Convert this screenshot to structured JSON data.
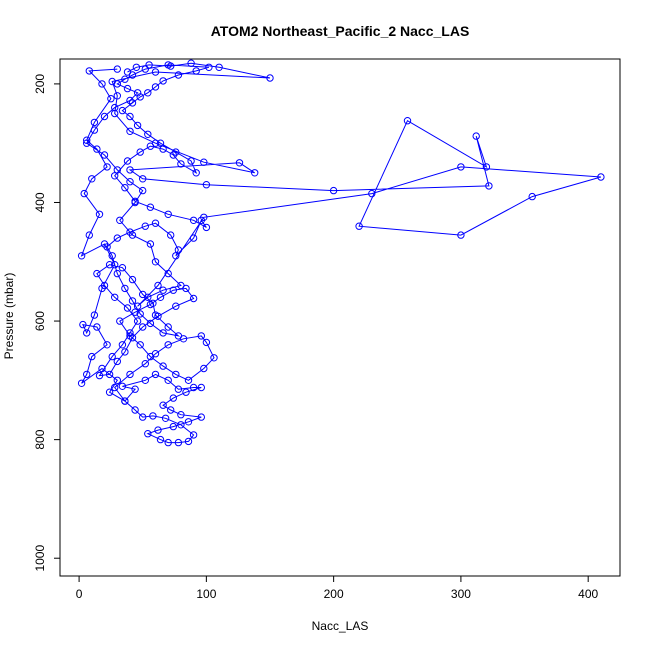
{
  "chart_data": {
    "type": "scatter",
    "title": "ATOM2 Northeast_Pacific_2 Nacc_LAS",
    "xlabel": "Nacc_LAS",
    "ylabel": "Pressure (mbar)",
    "xlim": [
      -15,
      425
    ],
    "ylim": [
      1030,
      158
    ],
    "y_reversed": true,
    "x_ticks": [
      0,
      100,
      200,
      300,
      400
    ],
    "y_ticks": [
      200,
      400,
      600,
      800,
      1000
    ],
    "grid": false,
    "legend": "none",
    "colors": {
      "series": "#0000ff",
      "axis": "#000000",
      "background": "#ffffff"
    },
    "series": [
      {
        "style": "line+points",
        "points": [
          [
            30,
            175
          ],
          [
            8,
            178
          ],
          [
            18,
            200
          ],
          [
            25,
            225
          ],
          [
            12,
            265
          ],
          [
            6,
            295
          ],
          [
            14,
            310
          ],
          [
            22,
            340
          ],
          [
            10,
            360
          ],
          [
            4,
            385
          ],
          [
            16,
            420
          ],
          [
            8,
            455
          ],
          [
            2,
            490
          ],
          [
            20,
            470
          ],
          [
            28,
            505
          ],
          [
            18,
            545
          ],
          [
            12,
            590
          ],
          [
            6,
            620
          ],
          [
            3,
            606
          ],
          [
            14,
            610
          ],
          [
            22,
            640
          ],
          [
            10,
            660
          ],
          [
            6,
            690
          ],
          [
            2,
            705
          ],
          [
            18,
            680
          ],
          [
            30,
            700
          ],
          [
            24,
            720
          ],
          [
            36,
            735
          ],
          [
            44,
            715
          ],
          [
            34,
            710
          ],
          [
            52,
            700
          ],
          [
            60,
            690
          ],
          [
            70,
            700
          ],
          [
            78,
            715
          ],
          [
            90,
            712
          ],
          [
            96,
            712
          ],
          [
            84,
            720
          ],
          [
            74,
            730
          ],
          [
            66,
            742
          ],
          [
            72,
            750
          ],
          [
            80,
            758
          ],
          [
            96,
            762
          ],
          [
            86,
            770
          ],
          [
            74,
            778
          ],
          [
            62,
            784
          ],
          [
            54,
            790
          ],
          [
            64,
            800
          ],
          [
            70,
            805
          ],
          [
            78,
            805
          ],
          [
            86,
            803
          ],
          [
            90,
            792
          ],
          [
            80,
            775
          ],
          [
            68,
            764
          ],
          [
            58,
            760
          ],
          [
            50,
            762
          ],
          [
            44,
            750
          ],
          [
            36,
            735
          ],
          [
            28,
            712
          ],
          [
            40,
            690
          ],
          [
            52,
            672
          ],
          [
            60,
            655
          ],
          [
            70,
            640
          ],
          [
            82,
            630
          ],
          [
            96,
            625
          ],
          [
            100,
            636
          ],
          [
            106,
            662
          ],
          [
            98,
            680
          ],
          [
            86,
            700
          ],
          [
            76,
            690
          ],
          [
            66,
            676
          ],
          [
            56,
            660
          ],
          [
            48,
            640
          ],
          [
            40,
            625
          ],
          [
            32,
            600
          ],
          [
            44,
            585
          ],
          [
            56,
            572
          ],
          [
            64,
            560
          ],
          [
            74,
            548
          ],
          [
            84,
            545
          ],
          [
            90,
            562
          ],
          [
            76,
            575
          ],
          [
            62,
            592
          ],
          [
            50,
            610
          ],
          [
            42,
            628
          ],
          [
            36,
            652
          ],
          [
            30,
            668
          ],
          [
            24,
            690
          ],
          [
            16,
            692
          ],
          [
            26,
            660
          ],
          [
            34,
            640
          ],
          [
            40,
            620
          ],
          [
            46,
            600
          ],
          [
            38,
            578
          ],
          [
            28,
            560
          ],
          [
            20,
            540
          ],
          [
            14,
            520
          ],
          [
            24,
            505
          ],
          [
            34,
            510
          ],
          [
            42,
            530
          ],
          [
            50,
            555
          ],
          [
            58,
            570
          ],
          [
            60,
            590
          ],
          [
            70,
            610
          ],
          [
            78,
            625
          ],
          [
            66,
            620
          ],
          [
            56,
            604
          ],
          [
            48,
            588
          ],
          [
            42,
            566
          ],
          [
            36,
            545
          ],
          [
            30,
            520
          ],
          [
            26,
            490
          ],
          [
            22,
            475
          ],
          [
            30,
            460
          ],
          [
            40,
            450
          ],
          [
            52,
            440
          ],
          [
            60,
            435
          ],
          [
            72,
            455
          ],
          [
            78,
            480
          ],
          [
            76,
            490
          ],
          [
            90,
            460
          ],
          [
            96,
            430
          ],
          [
            100,
            442
          ],
          [
            90,
            430
          ],
          [
            70,
            420
          ],
          [
            56,
            408
          ],
          [
            44,
            398
          ],
          [
            36,
            375
          ],
          [
            28,
            355
          ],
          [
            38,
            330
          ],
          [
            48,
            315
          ],
          [
            56,
            305
          ],
          [
            66,
            310
          ],
          [
            74,
            320
          ],
          [
            80,
            335
          ],
          [
            92,
            350
          ],
          [
            88,
            330
          ],
          [
            76,
            315
          ],
          [
            64,
            300
          ],
          [
            54,
            285
          ],
          [
            46,
            270
          ],
          [
            40,
            255
          ],
          [
            34,
            245
          ],
          [
            42,
            232
          ],
          [
            48,
            222
          ],
          [
            54,
            215
          ],
          [
            60,
            205
          ],
          [
            66,
            195
          ],
          [
            78,
            185
          ],
          [
            92,
            178
          ],
          [
            102,
            172
          ],
          [
            70,
            168
          ],
          [
            52,
            175
          ],
          [
            42,
            185
          ],
          [
            36,
            192
          ],
          [
            30,
            200
          ],
          [
            38,
            208
          ],
          [
            46,
            215
          ],
          [
            40,
            228
          ],
          [
            28,
            240
          ],
          [
            20,
            255
          ],
          [
            12,
            278
          ],
          [
            6,
            300
          ],
          [
            20,
            320
          ],
          [
            30,
            345
          ],
          [
            40,
            365
          ],
          [
            50,
            380
          ],
          [
            44,
            400
          ],
          [
            32,
            430
          ],
          [
            42,
            455
          ],
          [
            56,
            470
          ],
          [
            60,
            500
          ],
          [
            70,
            520
          ],
          [
            80,
            540
          ],
          [
            66,
            548
          ],
          [
            54,
            560
          ],
          [
            46,
            575
          ],
          [
            62,
            540
          ],
          [
            98,
            425
          ],
          [
            230,
            385
          ],
          [
            300,
            340
          ],
          [
            410,
            357
          ],
          [
            356,
            390
          ],
          [
            300,
            455
          ],
          [
            220,
            440
          ],
          [
            258,
            262
          ],
          [
            320,
            340
          ],
          [
            312,
            288
          ],
          [
            322,
            372
          ],
          [
            200,
            380
          ],
          [
            100,
            370
          ],
          [
            50,
            360
          ],
          [
            40,
            345
          ],
          [
            126,
            333
          ],
          [
            138,
            350
          ],
          [
            98,
            332
          ],
          [
            60,
            300
          ],
          [
            40,
            280
          ],
          [
            28,
            250
          ],
          [
            30,
            220
          ],
          [
            26,
            196
          ],
          [
            60,
            180
          ],
          [
            150,
            190
          ],
          [
            110,
            172
          ],
          [
            88,
            165
          ],
          [
            72,
            170
          ],
          [
            55,
            168
          ],
          [
            45,
            172
          ],
          [
            38,
            180
          ]
        ]
      }
    ]
  }
}
